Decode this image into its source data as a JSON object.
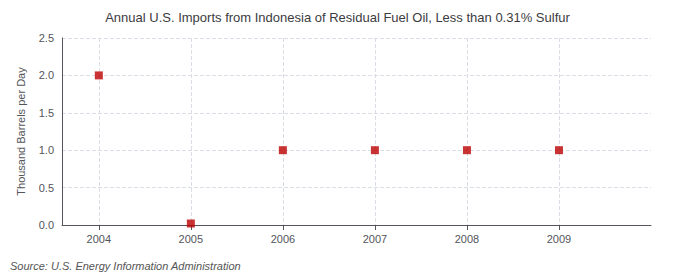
{
  "chart_data": {
    "type": "scatter",
    "title": "Annual U.S. Imports from Indonesia of Residual Fuel Oil, Less than 0.31% Sulfur",
    "ylabel": "Thousand Barrels per Day",
    "annotations": [
      "Source: U.S. Energy Information Administration"
    ],
    "x": [
      2004,
      2005,
      2006,
      2007,
      2008,
      2009
    ],
    "values": [
      2.0,
      0.02,
      1.0,
      1.0,
      1.0,
      1.0
    ],
    "color": "#BB0000",
    "marker": "square",
    "xlim": [
      2003.6,
      2010.0
    ],
    "xticks": [
      2004,
      2005,
      2006,
      2007,
      2008,
      2009
    ],
    "ylim": [
      0.0,
      2.5
    ],
    "yticks": [
      {
        "value": 0.0,
        "label": "0.0"
      },
      0.5,
      {
        "value": 1.0,
        "label": "1.0"
      },
      1.5,
      {
        "value": 2.0,
        "label": "2.0"
      },
      2.5
    ],
    "grid": true
  }
}
